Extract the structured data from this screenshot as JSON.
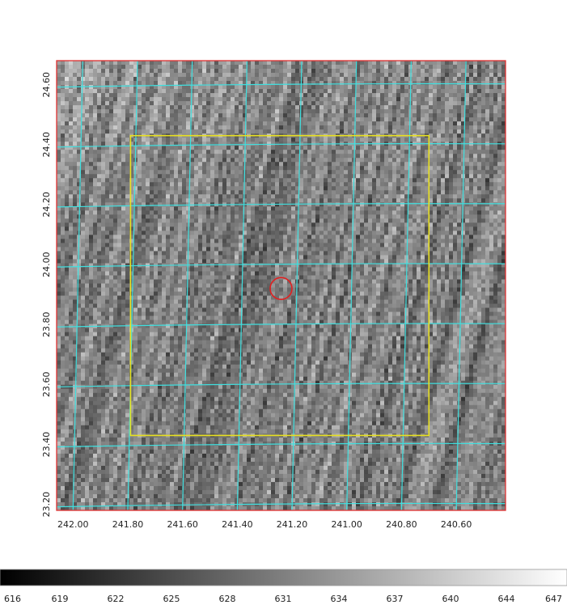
{
  "chart_data": {
    "type": "heatmap",
    "title": "",
    "xlabel": "",
    "ylabel": "",
    "x_axis": {
      "reversed": true,
      "xlim": [
        242.06,
        240.42
      ],
      "ticks": [
        242.0,
        241.8,
        241.6,
        241.4,
        241.2,
        241.0,
        240.8,
        240.6
      ],
      "tick_labels": [
        "242.00",
        "241.80",
        "241.60",
        "241.40",
        "241.20",
        "241.00",
        "240.80",
        "240.60"
      ]
    },
    "y_axis": {
      "ylim": [
        23.18,
        24.68
      ],
      "ticks": [
        23.2,
        23.4,
        23.6,
        23.8,
        24.0,
        24.2,
        24.4,
        24.6
      ],
      "tick_labels": [
        "23.20",
        "23.40",
        "23.60",
        "23.80",
        "24.00",
        "24.20",
        "24.40",
        "24.60"
      ]
    },
    "grid": true,
    "grid_color": "#3fe0e0",
    "frame_color": "#e03030",
    "colormap": "gray",
    "colorbar": {
      "location": "bottom",
      "tick_labels": [
        "616",
        "619",
        "622",
        "625",
        "628",
        "631",
        "634",
        "637",
        "640",
        "644",
        "647"
      ]
    },
    "annotations": [
      {
        "shape": "rectangle",
        "color": "#e8e020",
        "ra_range": [
          241.79,
          240.7
        ],
        "dec_range": [
          23.43,
          24.43
        ]
      },
      {
        "shape": "circle",
        "color": "#e02020",
        "center": [
          241.24,
          23.92
        ],
        "radius_deg": 0.04
      }
    ]
  }
}
